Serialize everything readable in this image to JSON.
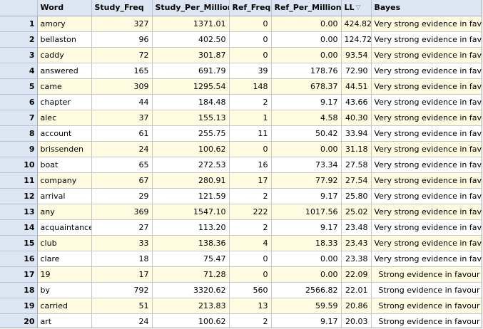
{
  "columns": {
    "word": "Word",
    "study_freq": "Study_Freq",
    "study_per_million": "Study_Per_Million",
    "ref_freq": "Ref_Freq",
    "ref_per_million": "Ref_Per_Million",
    "ll": "LL",
    "bayes": "Bayes"
  },
  "sort_indicator": "▽",
  "rows": [
    {
      "n": "1",
      "word": "amory",
      "study_freq": "327",
      "study_pm": "1371.01",
      "ref_freq": "0",
      "ref_pm": "0.00",
      "ll": "424.82",
      "bayes": "Very strong evidence in favour"
    },
    {
      "n": "2",
      "word": "bellaston",
      "study_freq": "96",
      "study_pm": "402.50",
      "ref_freq": "0",
      "ref_pm": "0.00",
      "ll": "124.72",
      "bayes": "Very strong evidence in favour"
    },
    {
      "n": "3",
      "word": "caddy",
      "study_freq": "72",
      "study_pm": "301.87",
      "ref_freq": "0",
      "ref_pm": "0.00",
      "ll": "93.54",
      "bayes": "Very strong evidence in favour"
    },
    {
      "n": "4",
      "word": "answered",
      "study_freq": "165",
      "study_pm": "691.79",
      "ref_freq": "39",
      "ref_pm": "178.76",
      "ll": "72.90",
      "bayes": "Very strong evidence in favour"
    },
    {
      "n": "5",
      "word": "came",
      "study_freq": "309",
      "study_pm": "1295.54",
      "ref_freq": "148",
      "ref_pm": "678.37",
      "ll": "44.51",
      "bayes": "Very strong evidence in favour"
    },
    {
      "n": "6",
      "word": "chapter",
      "study_freq": "44",
      "study_pm": "184.48",
      "ref_freq": "2",
      "ref_pm": "9.17",
      "ll": "43.66",
      "bayes": "Very strong evidence in favour"
    },
    {
      "n": "7",
      "word": "alec",
      "study_freq": "37",
      "study_pm": "155.13",
      "ref_freq": "1",
      "ref_pm": "4.58",
      "ll": "40.30",
      "bayes": "Very strong evidence in favour"
    },
    {
      "n": "8",
      "word": "account",
      "study_freq": "61",
      "study_pm": "255.75",
      "ref_freq": "11",
      "ref_pm": "50.42",
      "ll": "33.94",
      "bayes": "Very strong evidence in favour"
    },
    {
      "n": "9",
      "word": "brissenden",
      "study_freq": "24",
      "study_pm": "100.62",
      "ref_freq": "0",
      "ref_pm": "0.00",
      "ll": "31.18",
      "bayes": "Very strong evidence in favour"
    },
    {
      "n": "10",
      "word": "boat",
      "study_freq": "65",
      "study_pm": "272.53",
      "ref_freq": "16",
      "ref_pm": "73.34",
      "ll": "27.58",
      "bayes": "Very strong evidence in favour"
    },
    {
      "n": "11",
      "word": "company",
      "study_freq": "67",
      "study_pm": "280.91",
      "ref_freq": "17",
      "ref_pm": "77.92",
      "ll": "27.54",
      "bayes": "Very strong evidence in favour"
    },
    {
      "n": "12",
      "word": "arrival",
      "study_freq": "29",
      "study_pm": "121.59",
      "ref_freq": "2",
      "ref_pm": "9.17",
      "ll": "25.80",
      "bayes": "Very strong evidence in favour"
    },
    {
      "n": "13",
      "word": "any",
      "study_freq": "369",
      "study_pm": "1547.10",
      "ref_freq": "222",
      "ref_pm": "1017.56",
      "ll": "25.02",
      "bayes": "Very strong evidence in favour"
    },
    {
      "n": "14",
      "word": "acquaintance",
      "study_freq": "27",
      "study_pm": "113.20",
      "ref_freq": "2",
      "ref_pm": "9.17",
      "ll": "23.48",
      "bayes": "Very strong evidence in favour"
    },
    {
      "n": "15",
      "word": "club",
      "study_freq": "33",
      "study_pm": "138.36",
      "ref_freq": "4",
      "ref_pm": "18.33",
      "ll": "23.43",
      "bayes": "Very strong evidence in favour"
    },
    {
      "n": "16",
      "word": "clare",
      "study_freq": "18",
      "study_pm": "75.47",
      "ref_freq": "0",
      "ref_pm": "0.00",
      "ll": "23.38",
      "bayes": "Very strong evidence in favour"
    },
    {
      "n": "17",
      "word": "19",
      "study_freq": "17",
      "study_pm": "71.28",
      "ref_freq": "0",
      "ref_pm": "0.00",
      "ll": "22.09",
      "bayes": "Strong evidence in favour"
    },
    {
      "n": "18",
      "word": "by",
      "study_freq": "792",
      "study_pm": "3320.62",
      "ref_freq": "560",
      "ref_pm": "2566.82",
      "ll": "22.01",
      "bayes": "Strong evidence in favour"
    },
    {
      "n": "19",
      "word": "carried",
      "study_freq": "51",
      "study_pm": "213.83",
      "ref_freq": "13",
      "ref_pm": "59.59",
      "ll": "20.86",
      "bayes": "Strong evidence in favour"
    },
    {
      "n": "20",
      "word": "art",
      "study_freq": "24",
      "study_pm": "100.62",
      "ref_freq": "2",
      "ref_pm": "9.17",
      "ll": "20.03",
      "bayes": "Strong evidence in favour"
    }
  ]
}
